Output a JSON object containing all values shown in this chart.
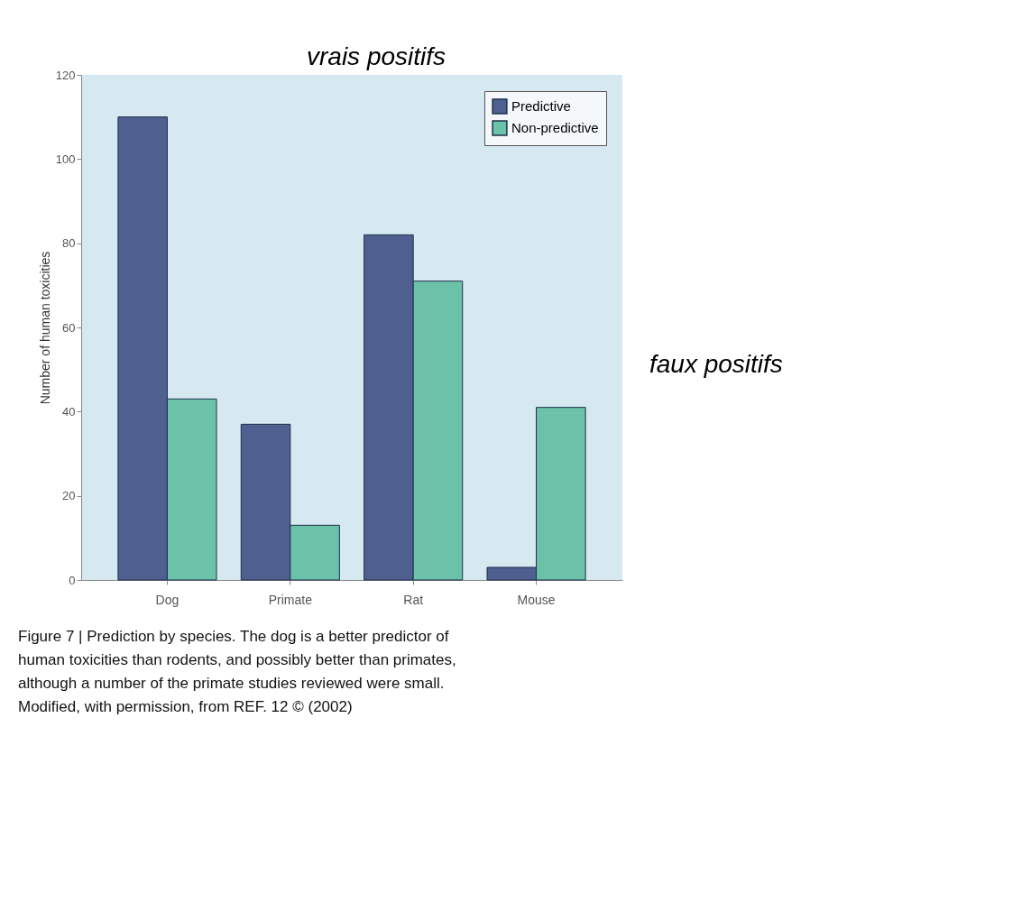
{
  "chart_data": {
    "type": "bar",
    "categories": [
      "Dog",
      "Primate",
      "Rat",
      "Mouse"
    ],
    "ylabel": "Number of human toxicities",
    "series": [
      {
        "name": "Predictive",
        "color": "#4f5f8f",
        "values": [
          110,
          37,
          82,
          3
        ]
      },
      {
        "name": "Non-predictive",
        "color": "#6cc2a8",
        "values": [
          43,
          13,
          71,
          41
        ]
      }
    ],
    "ylim": [
      0,
      120
    ],
    "yticks": [
      0,
      20,
      40,
      60,
      80,
      100,
      120
    ],
    "grid": false,
    "legend": "top right",
    "annotations": [
      "Figure 7 | Prediction by species. The dog is a better predictor of human toxicities than rodents, and possibly better than primates, although a number of the primate studies reviewed were small. Modified, with permission, from REF. 12 © (2002)",
      "vrais positifs",
      "faux positifs"
    ]
  }
}
